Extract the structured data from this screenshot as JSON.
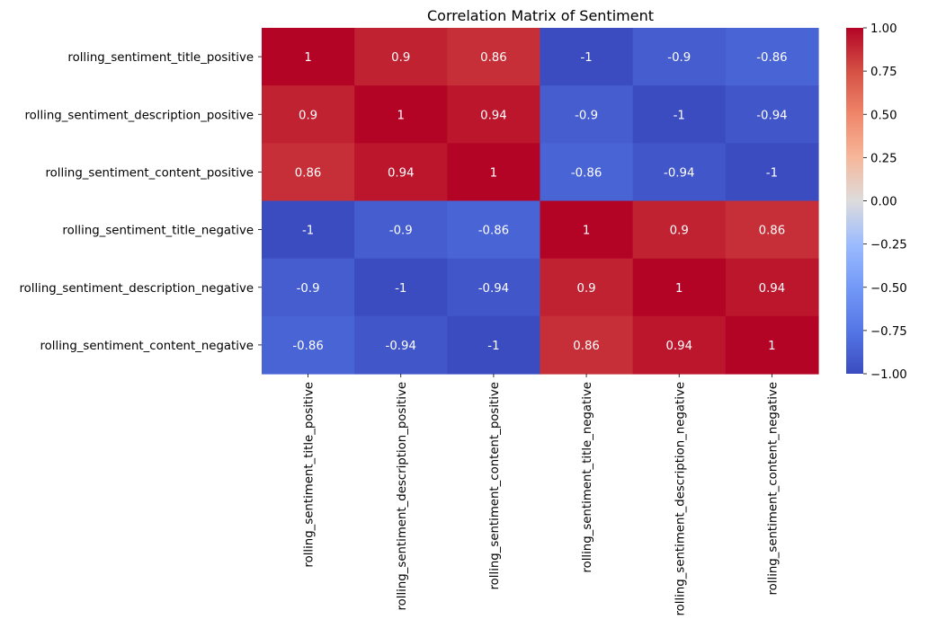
{
  "chart_data": {
    "type": "heatmap",
    "title": "Correlation Matrix of Sentiment",
    "xlabel": "",
    "ylabel": "",
    "rows": [
      "rolling_sentiment_title_positive",
      "rolling_sentiment_description_positive",
      "rolling_sentiment_content_positive",
      "rolling_sentiment_title_negative",
      "rolling_sentiment_description_negative",
      "rolling_sentiment_content_negative"
    ],
    "columns": [
      "rolling_sentiment_title_positive",
      "rolling_sentiment_description_positive",
      "rolling_sentiment_content_positive",
      "rolling_sentiment_title_negative",
      "rolling_sentiment_description_negative",
      "rolling_sentiment_content_negative"
    ],
    "values": [
      [
        1,
        0.9,
        0.86,
        -1,
        -0.9,
        -0.86
      ],
      [
        0.9,
        1,
        0.94,
        -0.9,
        -1,
        -0.94
      ],
      [
        0.86,
        0.94,
        1,
        -0.86,
        -0.94,
        -1
      ],
      [
        -1,
        -0.9,
        -0.86,
        1,
        0.9,
        0.86
      ],
      [
        -0.9,
        -1,
        -0.94,
        0.9,
        1,
        0.94
      ],
      [
        -0.86,
        -0.94,
        -1,
        0.86,
        0.94,
        1
      ]
    ],
    "colorbar": {
      "colormap": "coolwarm",
      "range": [
        -1,
        1
      ],
      "ticks": [
        1.0,
        0.75,
        0.5,
        0.25,
        0.0,
        -0.25,
        -0.5,
        -0.75,
        -1.0
      ],
      "tick_labels": [
        "1.00",
        "0.75",
        "0.50",
        "0.25",
        "0.00",
        "−0.25",
        "−0.50",
        "−0.75",
        "−1.00"
      ]
    },
    "annotations": true,
    "grid": false
  }
}
